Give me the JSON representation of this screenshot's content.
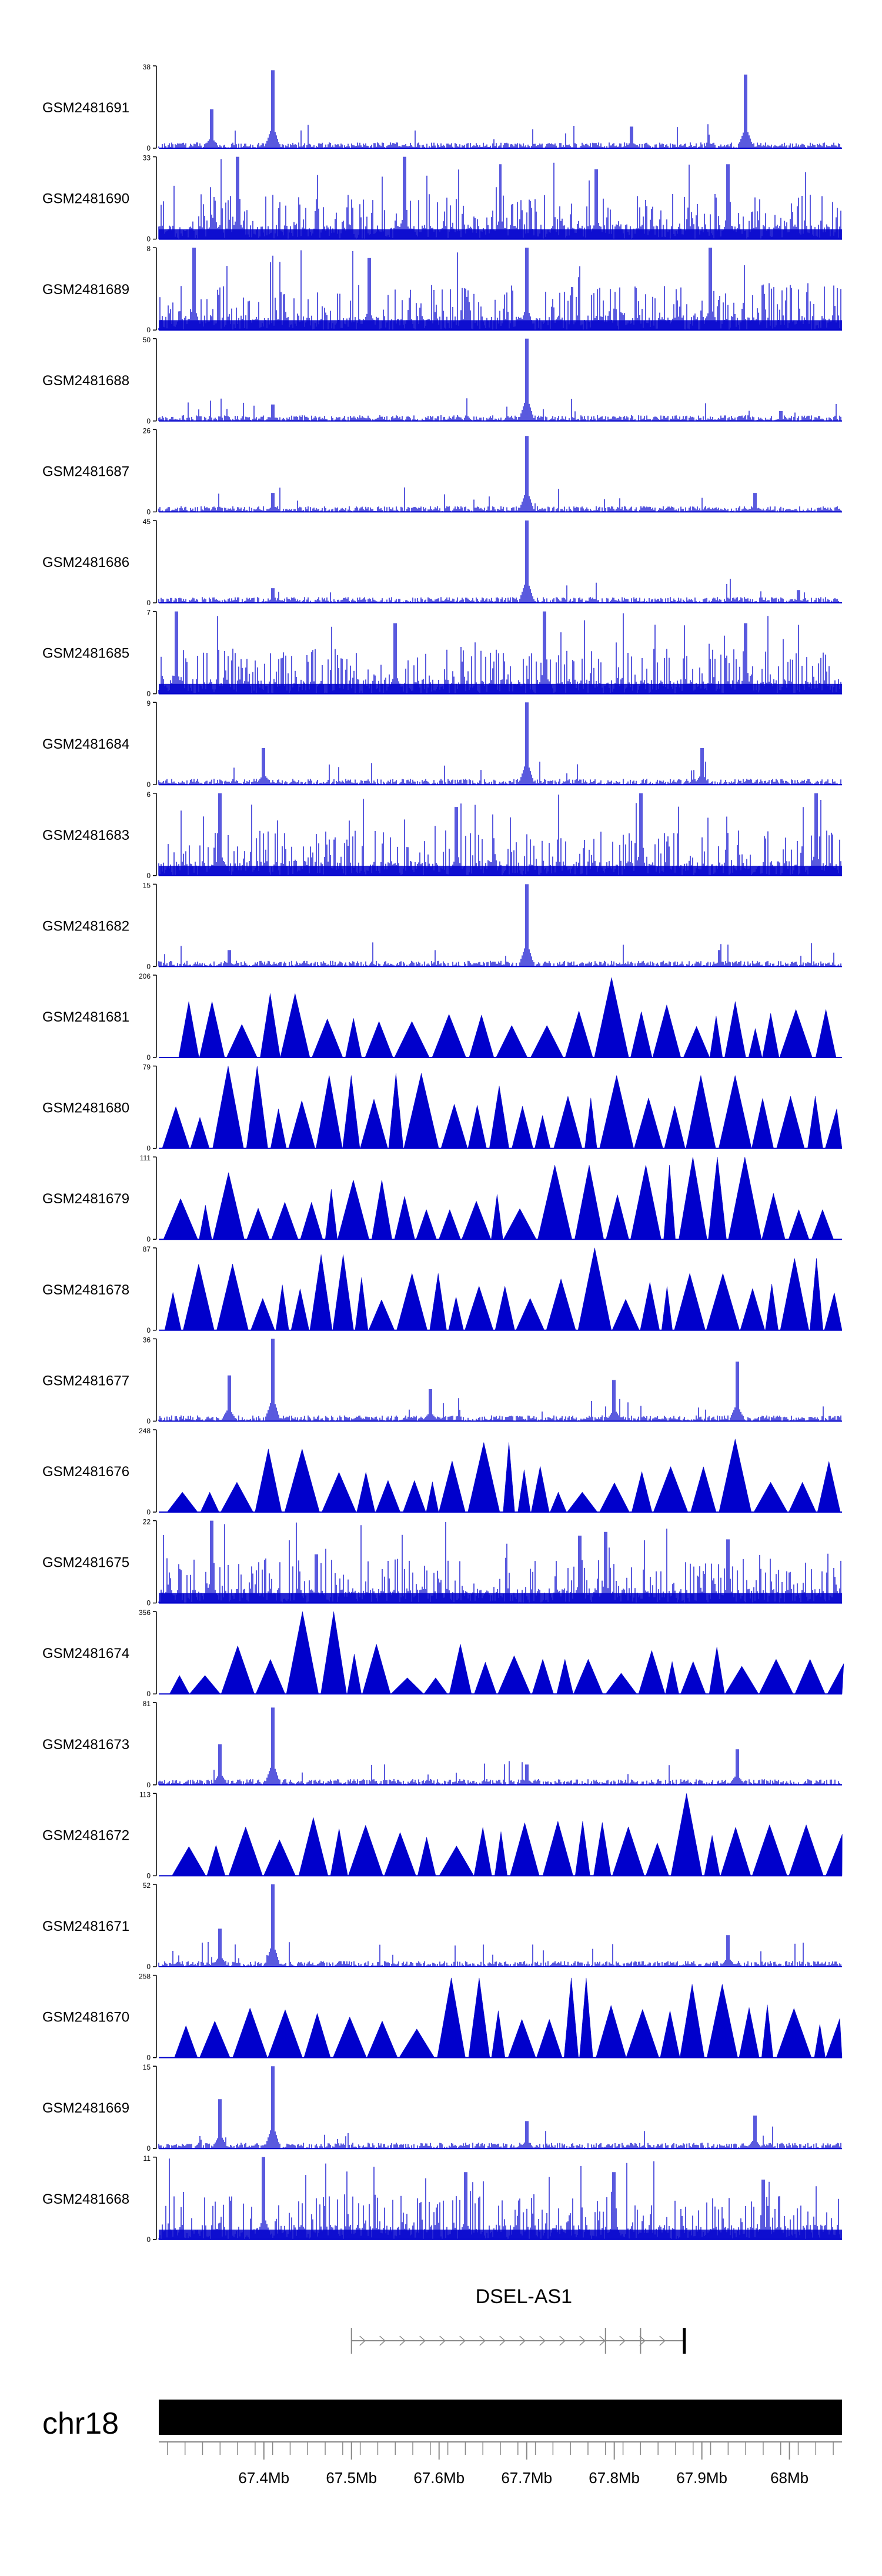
{
  "chart_data": {
    "type": "area",
    "title": "",
    "xlabel": "",
    "ylabel": "",
    "chromosome": "chr18",
    "xlim": [
      67.28,
      68.06
    ],
    "x_ticks": [
      "67.4Mb",
      "67.5Mb",
      "67.6Mb",
      "67.7Mb",
      "67.8Mb",
      "67.9Mb",
      "68Mb"
    ],
    "x_tick_values": [
      67.4,
      67.5,
      67.6,
      67.7,
      67.8,
      67.9,
      68.0
    ],
    "gene": {
      "name": "DSEL-AS1",
      "start": 67.5,
      "end": 67.88,
      "strand": "+",
      "exons": [
        67.5,
        67.79,
        67.83,
        67.88
      ]
    },
    "colors": {
      "signal": "#0000cc",
      "axis": "#000000",
      "ideogram": "#000000",
      "gene": "#888888"
    },
    "series": [
      {
        "name": "GSM2481691",
        "ymax": 38,
        "style": "spiky",
        "peaks": [
          [
            67.34,
            18
          ],
          [
            67.41,
            36
          ],
          [
            67.82,
            10
          ],
          [
            67.95,
            34
          ]
        ]
      },
      {
        "name": "GSM2481690",
        "ymax": 33,
        "style": "dense",
        "peaks": [
          [
            67.37,
            33
          ],
          [
            67.56,
            33
          ],
          [
            67.67,
            30
          ],
          [
            67.78,
            28
          ],
          [
            67.93,
            30
          ]
        ]
      },
      {
        "name": "GSM2481689",
        "ymax": 8,
        "style": "dense",
        "peaks": [
          [
            67.32,
            8
          ],
          [
            67.52,
            7
          ],
          [
            67.7,
            8
          ],
          [
            67.91,
            8
          ]
        ]
      },
      {
        "name": "GSM2481688",
        "ymax": 50,
        "style": "spiky",
        "peaks": [
          [
            67.41,
            10
          ],
          [
            67.7,
            50
          ],
          [
            67.99,
            6
          ]
        ]
      },
      {
        "name": "GSM2481687",
        "ymax": 26,
        "style": "spiky",
        "peaks": [
          [
            67.41,
            6
          ],
          [
            67.7,
            24
          ],
          [
            67.96,
            6
          ]
        ]
      },
      {
        "name": "GSM2481686",
        "ymax": 45,
        "style": "spiky",
        "peaks": [
          [
            67.41,
            8
          ],
          [
            67.7,
            45
          ],
          [
            68.01,
            7
          ]
        ]
      },
      {
        "name": "GSM2481685",
        "ymax": 7,
        "style": "dense",
        "peaks": [
          [
            67.3,
            7
          ],
          [
            67.55,
            6
          ],
          [
            67.72,
            7
          ],
          [
            67.95,
            6
          ]
        ]
      },
      {
        "name": "GSM2481684",
        "ymax": 9,
        "style": "spiky",
        "peaks": [
          [
            67.4,
            4
          ],
          [
            67.7,
            9
          ],
          [
            67.9,
            4
          ]
        ]
      },
      {
        "name": "GSM2481683",
        "ymax": 6,
        "style": "dense",
        "peaks": [
          [
            67.35,
            6
          ],
          [
            67.62,
            5
          ],
          [
            67.83,
            6
          ],
          [
            68.03,
            6
          ]
        ]
      },
      {
        "name": "GSM2481682",
        "ymax": 15,
        "style": "spiky",
        "peaks": [
          [
            67.36,
            3
          ],
          [
            67.7,
            15
          ],
          [
            67.92,
            3
          ]
        ]
      },
      {
        "name": "GSM2481681",
        "ymax": 206,
        "style": "triangles",
        "peaks": [
          [
            67.29,
            80
          ],
          [
            67.33,
            140
          ],
          [
            67.41,
            160
          ],
          [
            67.55,
            90
          ],
          [
            67.71,
            80
          ],
          [
            67.8,
            200
          ],
          [
            67.94,
            140
          ],
          [
            68.03,
            120
          ]
        ]
      },
      {
        "name": "GSM2481680",
        "ymax": 79,
        "style": "triangles",
        "peaks": [
          [
            67.29,
            40
          ],
          [
            67.37,
            79
          ],
          [
            67.48,
            70
          ],
          [
            67.56,
            72
          ],
          [
            67.67,
            60
          ],
          [
            67.79,
            70
          ],
          [
            67.92,
            70
          ],
          [
            68.02,
            50
          ]
        ]
      },
      {
        "name": "GSM2481679",
        "ymax": 111,
        "style": "triangles",
        "peaks": [
          [
            67.36,
            90
          ],
          [
            67.44,
            50
          ],
          [
            67.53,
            80
          ],
          [
            67.6,
            40
          ],
          [
            67.74,
            100
          ],
          [
            67.82,
            60
          ],
          [
            67.87,
            100
          ],
          [
            67.92,
            111
          ],
          [
            68.02,
            40
          ]
        ]
      },
      {
        "name": "GSM2481678",
        "ymax": 87,
        "style": "triangles",
        "peaks": [
          [
            67.29,
            40
          ],
          [
            67.36,
            70
          ],
          [
            67.49,
            80
          ],
          [
            67.59,
            60
          ],
          [
            67.78,
            87
          ],
          [
            67.91,
            60
          ],
          [
            68.02,
            76
          ]
        ]
      },
      {
        "name": "GSM2481677",
        "ymax": 36,
        "style": "spiky",
        "peaks": [
          [
            67.36,
            20
          ],
          [
            67.41,
            36
          ],
          [
            67.59,
            14
          ],
          [
            67.8,
            18
          ],
          [
            67.94,
            26
          ]
        ]
      },
      {
        "name": "GSM2481676",
        "ymax": 248,
        "style": "triangles",
        "peaks": [
          [
            67.32,
            60
          ],
          [
            67.38,
            90
          ],
          [
            67.42,
            190
          ],
          [
            67.51,
            120
          ],
          [
            67.65,
            100
          ],
          [
            67.68,
            210
          ],
          [
            67.74,
            60
          ],
          [
            67.96,
            220
          ],
          [
            68.01,
            90
          ]
        ]
      },
      {
        "name": "GSM2481675",
        "ymax": 22,
        "style": "dense",
        "peaks": [
          [
            67.34,
            22
          ],
          [
            67.46,
            13
          ],
          [
            67.76,
            18
          ],
          [
            67.79,
            19
          ],
          [
            67.93,
            17
          ]
        ]
      },
      {
        "name": "GSM2481674",
        "ymax": 356,
        "style": "triangles",
        "peaks": [
          [
            67.32,
            80
          ],
          [
            67.47,
            356
          ],
          [
            67.59,
            70
          ],
          [
            67.74,
            150
          ],
          [
            67.81,
            90
          ],
          [
            67.88,
            140
          ],
          [
            67.98,
            120
          ],
          [
            68.02,
            150
          ]
        ]
      },
      {
        "name": "GSM2481673",
        "ymax": 81,
        "style": "spiky",
        "peaks": [
          [
            67.35,
            40
          ],
          [
            67.41,
            76
          ],
          [
            67.7,
            20
          ],
          [
            67.94,
            35
          ]
        ]
      },
      {
        "name": "GSM2481672",
        "ymax": 113,
        "style": "triangles",
        "peaks": [
          [
            67.3,
            40
          ],
          [
            67.46,
            80
          ],
          [
            67.75,
            75
          ],
          [
            67.88,
            113
          ],
          [
            68.0,
            70
          ]
        ]
      },
      {
        "name": "GSM2481671",
        "ymax": 52,
        "style": "spiky",
        "peaks": [
          [
            67.35,
            24
          ],
          [
            67.41,
            52
          ],
          [
            67.93,
            20
          ]
        ]
      },
      {
        "name": "GSM2481670",
        "ymax": 258,
        "style": "triangles",
        "peaks": [
          [
            67.3,
            100
          ],
          [
            67.43,
            150
          ],
          [
            67.59,
            90
          ],
          [
            67.64,
            250
          ],
          [
            67.72,
            120
          ],
          [
            67.76,
            250
          ],
          [
            67.9,
            230
          ]
        ]
      },
      {
        "name": "GSM2481669",
        "ymax": 15,
        "style": "spiky",
        "peaks": [
          [
            67.35,
            9
          ],
          [
            67.41,
            15
          ],
          [
            67.7,
            5
          ],
          [
            67.96,
            6
          ]
        ]
      },
      {
        "name": "GSM2481668",
        "ymax": 11,
        "style": "dense",
        "peaks": [
          [
            67.4,
            11
          ],
          [
            67.63,
            9
          ],
          [
            67.8,
            9
          ],
          [
            67.97,
            8
          ]
        ]
      }
    ]
  }
}
